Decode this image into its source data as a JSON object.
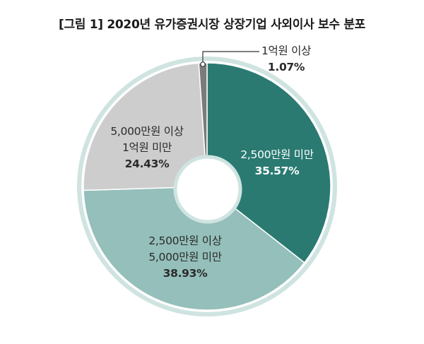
{
  "header": {
    "title": "[그림 1] 2020년 유가증권시장 상장기업 사외이사 보수 분포"
  },
  "colors": {
    "slice_under_25m": "#2a7a72",
    "slice_25m_50m": "#94bfba",
    "slice_50m_100m": "#cdcdcd",
    "slice_over_100m": "#7b7b7b",
    "ring": "#cfe4e1",
    "separator": "#ffffff"
  },
  "labels": {
    "under_25m": {
      "line1": "2,500만원 미만",
      "pct": "35.57%"
    },
    "m25_50": {
      "line1": "2,500만원 이상",
      "line2": "5,000만원 미만",
      "pct": "38.93%"
    },
    "m50_100": {
      "line1": "5,000만원 이상",
      "line2": "1억원 미만",
      "pct": "24.43%"
    },
    "over_100m": {
      "line1": "1억원 이상",
      "pct": "1.07%"
    }
  },
  "chart_data": {
    "type": "pie",
    "subtype": "donut",
    "title": "[그림 1] 2020년 유가증권시장 상장기업 사외이사 보수 분포",
    "categories": [
      "2,500만원 미만",
      "2,500만원 이상 5,000만원 미만",
      "5,000만원 이상 1억원 미만",
      "1억원 이상"
    ],
    "values": [
      35.57,
      38.93,
      24.43,
      1.07
    ],
    "unit": "%",
    "start_angle": "12 o'clock",
    "direction": "clockwise",
    "legend": "none (labels on slices, callout for smallest slice)"
  }
}
